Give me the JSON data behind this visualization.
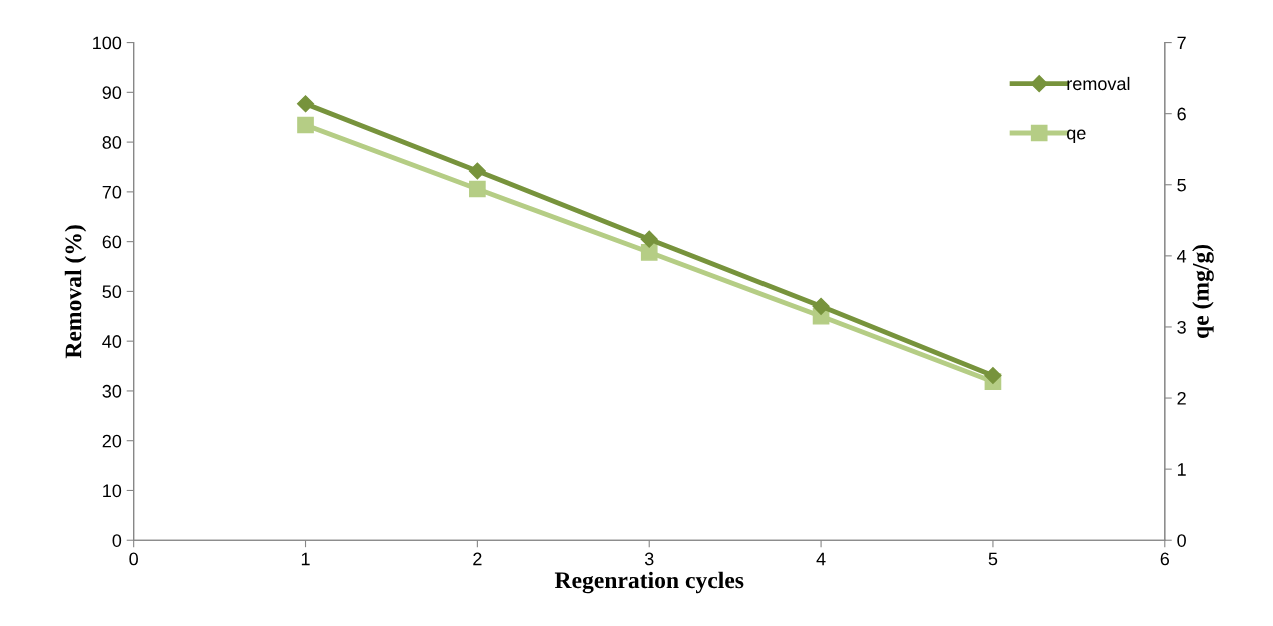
{
  "chart_data": {
    "type": "line",
    "xlabel": "Regenration cycles",
    "ylabel": "Removal (%)",
    "y2label": "qe (mg/g)",
    "x": [
      1,
      2,
      3,
      4,
      5
    ],
    "series": [
      {
        "name": "removal",
        "color": "#77933c",
        "marker": "diamond",
        "values": [
          87.7,
          74.2,
          60.5,
          47.0,
          33.1
        ]
      },
      {
        "name": "qe",
        "color": "#b5cd85",
        "marker": "square",
        "axis": "y2",
        "values": [
          5.84,
          4.94,
          4.05,
          3.15,
          2.23
        ]
      }
    ],
    "xlim": [
      0,
      6
    ],
    "xticks": [
      0,
      1,
      2,
      3,
      4,
      5,
      6
    ],
    "ylim": [
      0,
      100
    ],
    "yticks": [
      0,
      10,
      20,
      30,
      40,
      50,
      60,
      70,
      80,
      90,
      100
    ],
    "y2lim": [
      0,
      7
    ],
    "y2ticks": [
      0,
      1,
      2,
      3,
      4,
      5,
      6,
      7
    ],
    "grid": false,
    "legend": "top right",
    "line_style": "solid"
  }
}
